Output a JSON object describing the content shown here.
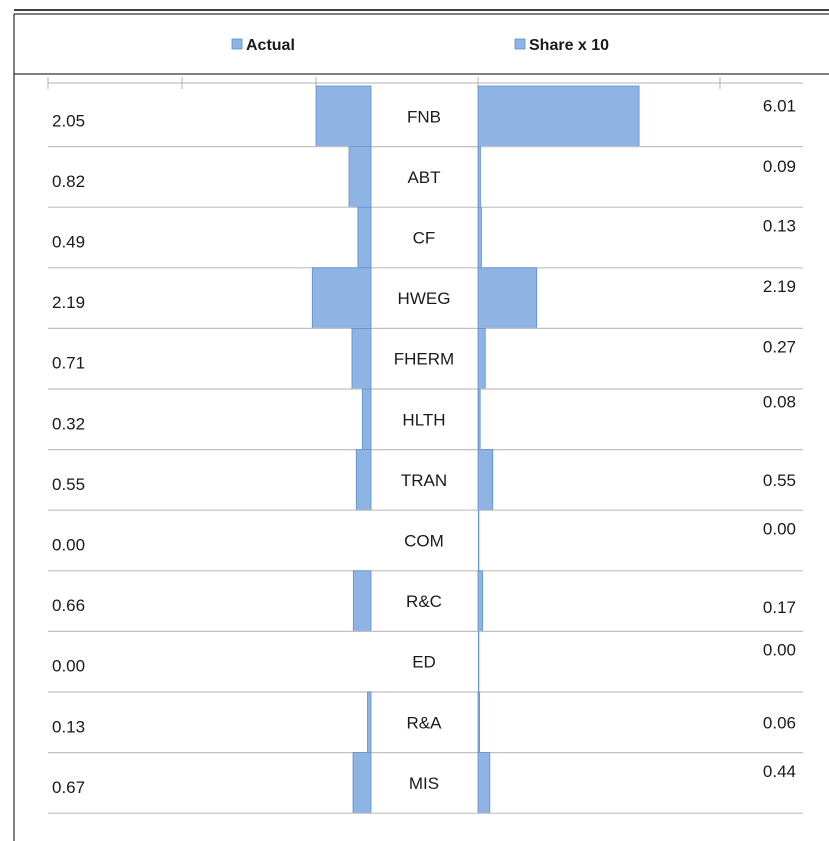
{
  "chart_data": {
    "type": "bar",
    "orientation": "horizontal-butterfly",
    "title": "",
    "legend": {
      "placement": "top",
      "entries": [
        "Actual",
        "Share x 10"
      ]
    },
    "categories": [
      "FNB",
      "ABT",
      "CF",
      "HWEG",
      "FHERM",
      "HLTH",
      "TRAN",
      "COM",
      "R&C",
      "ED",
      "R&A",
      "MIS"
    ],
    "series": [
      {
        "name": "Actual",
        "side": "left",
        "values": [
          2.05,
          0.82,
          0.49,
          2.19,
          0.71,
          0.32,
          0.55,
          0.0,
          0.66,
          0.0,
          0.13,
          0.67
        ],
        "labels": [
          "2.05",
          "0.82",
          "0.49",
          "2.19",
          "0.71",
          "0.32",
          "0.55",
          "0.00",
          "0.66",
          "0.00",
          "0.13",
          "0.67"
        ]
      },
      {
        "name": "Share x 10",
        "side": "right",
        "values": [
          6.01,
          0.09,
          0.13,
          2.19,
          0.27,
          0.08,
          0.55,
          0.0,
          0.17,
          0.0,
          0.06,
          0.44
        ],
        "labels": [
          "6.01",
          "0.09",
          "0.13",
          "2.19",
          "0.27",
          "0.08",
          "0.55",
          "0.00",
          "0.17",
          "0.00",
          "0.06",
          "0.44"
        ]
      }
    ],
    "xlim_left": [
      0,
      8
    ],
    "xlim_right": [
      0,
      8
    ],
    "grid": false,
    "colors": {
      "bar": "#8eb4e3",
      "bar_edge": "#5b8fd0",
      "divider": "#c0c0c0",
      "frame": "#000000"
    }
  }
}
